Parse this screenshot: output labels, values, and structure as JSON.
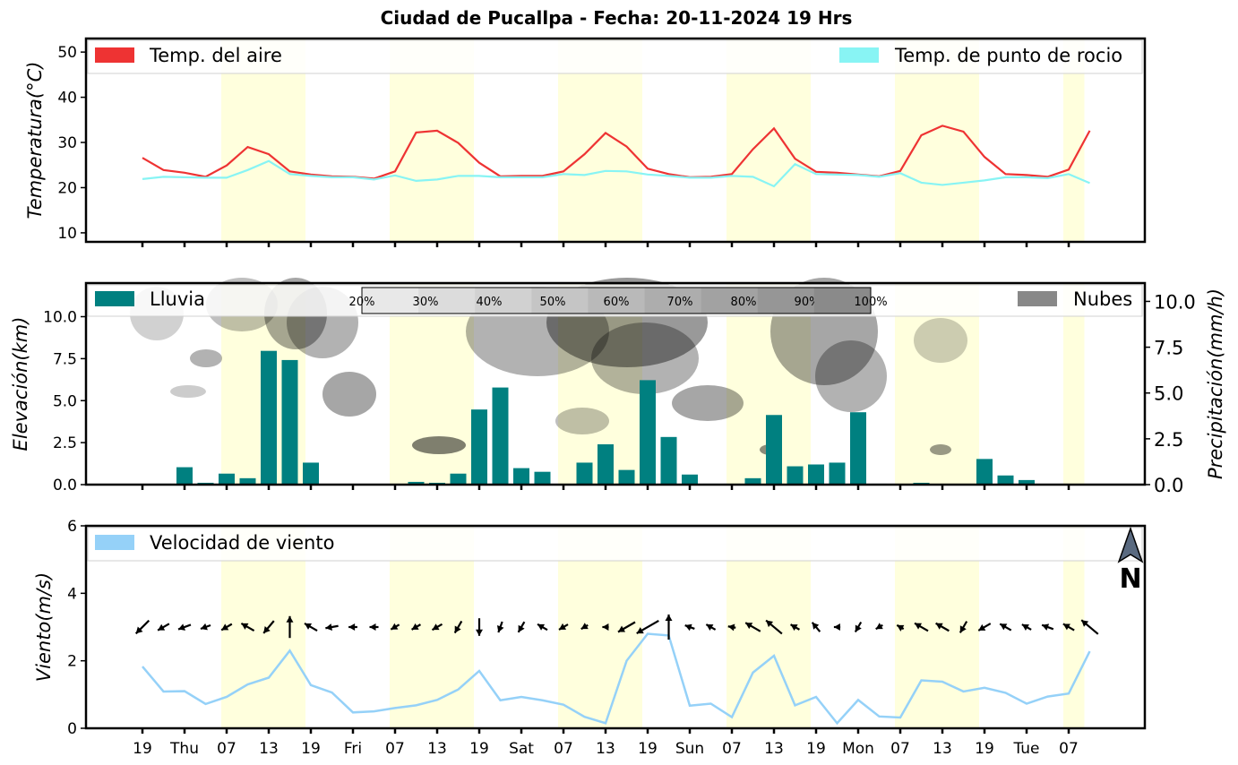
{
  "title": "Ciudad de Pucallpa   -   Fecha: 20-11-2024 19 Hrs",
  "x_tick_labels": [
    "19",
    "Thu",
    "07",
    "13",
    "19",
    "Fri",
    "07",
    "13",
    "19",
    "Sat",
    "07",
    "13",
    "19",
    "Sun",
    "07",
    "13",
    "19",
    "Mon",
    "07",
    "13",
    "19",
    "Tue",
    "07"
  ],
  "daylight_periods": [
    [
      4,
      8
    ],
    [
      12,
      16
    ],
    [
      20,
      24
    ],
    [
      28,
      32
    ],
    [
      36,
      40
    ],
    [
      44,
      45
    ]
  ],
  "colors": {
    "temp": "#ee3333",
    "dew": "#88f4f4",
    "rain": "#008080",
    "clouds": "#888888",
    "wind": "#95d1f8",
    "daylight": "#ffffdd"
  },
  "chart_data": [
    {
      "type": "line",
      "ylabel": "Temperatura(°C)",
      "ylim": [
        8,
        53
      ],
      "yticks": [
        10,
        20,
        30,
        40,
        50
      ],
      "series": [
        {
          "name": "Temp. del aire",
          "values": [
            26.6,
            23.9,
            23.3,
            22.4,
            24.9,
            29.0,
            27.4,
            23.6,
            22.9,
            22.5,
            22.4,
            22.0,
            23.6,
            32.2,
            32.6,
            29.9,
            25.5,
            22.5,
            22.6,
            22.6,
            23.6,
            27.4,
            32.1,
            29.1,
            24.2,
            23.0,
            22.3,
            22.4,
            23.0,
            28.5,
            33.1,
            26.4,
            23.5,
            23.3,
            22.9,
            22.5,
            23.7,
            31.6,
            33.7,
            32.4,
            26.8,
            23.0,
            22.8,
            22.4,
            24.0,
            32.6
          ]
        },
        {
          "name": "Temp. de punto de rocio",
          "values": [
            21.9,
            22.4,
            22.3,
            22.2,
            22.2,
            23.9,
            25.9,
            23.0,
            22.6,
            22.3,
            22.3,
            21.8,
            22.7,
            21.5,
            21.8,
            22.6,
            22.6,
            22.3,
            22.3,
            22.3,
            23.0,
            22.8,
            23.7,
            23.6,
            22.9,
            22.6,
            22.2,
            22.2,
            22.6,
            22.4,
            20.3,
            25.2,
            23.0,
            22.9,
            22.8,
            22.4,
            23.2,
            21.1,
            20.6,
            21.1,
            21.6,
            22.3,
            22.3,
            22.1,
            23.0,
            21.0
          ]
        }
      ]
    },
    {
      "type": "bar",
      "ylabel": "Elevación(km)",
      "y2label": "Precipitación(mm/h)",
      "ylim": [
        0,
        12
      ],
      "yticks": [
        0.0,
        2.5,
        5.0,
        7.5,
        10.0
      ],
      "y2lim": [
        0,
        11
      ],
      "y2ticks": [
        0.0,
        2.5,
        5.0,
        7.5,
        10.0
      ],
      "series": [
        {
          "name": "Lluvia",
          "values": [
            0,
            0.05,
            0.95,
            0.1,
            0.6,
            0.35,
            7.3,
            6.8,
            1.2,
            0,
            0,
            0,
            0,
            0.15,
            0.1,
            0.6,
            4.1,
            5.3,
            0.9,
            0.7,
            0,
            1.2,
            2.2,
            0.8,
            5.7,
            2.6,
            0.55,
            0.05,
            0.05,
            0.35,
            3.8,
            1.0,
            1.1,
            1.2,
            3.95,
            0.05,
            0,
            0.1,
            0,
            0,
            1.4,
            0.5,
            0.25,
            0,
            0
          ]
        },
        {
          "name": "Nubes"
        }
      ],
      "cloud_colorbar": [
        "20%",
        "30%",
        "40%",
        "50%",
        "60%",
        "70%",
        "80%",
        "90%",
        "100%"
      ]
    },
    {
      "type": "line",
      "ylabel": "Viento(m/s)",
      "ylim": [
        0,
        6
      ],
      "yticks": [
        0,
        2,
        4,
        6
      ],
      "series": [
        {
          "name": "Velocidad de viento",
          "values": [
            1.83,
            1.09,
            1.1,
            0.72,
            0.93,
            1.3,
            1.5,
            2.3,
            1.28,
            1.06,
            0.47,
            0.5,
            0.6,
            0.68,
            0.84,
            1.15,
            1.7,
            0.83,
            0.93,
            0.83,
            0.7,
            0.34,
            0.15,
            2.0,
            2.8,
            2.75,
            0.67,
            0.73,
            0.33,
            1.65,
            2.15,
            0.68,
            0.93,
            0.15,
            0.84,
            0.35,
            0.32,
            1.42,
            1.38,
            1.09,
            1.2,
            1.05,
            0.73,
            0.94,
            1.03,
            2.28
          ]
        }
      ],
      "wind_dir_deg": [
        225,
        240,
        250,
        250,
        240,
        300,
        220,
        0,
        300,
        260,
        270,
        270,
        240,
        240,
        240,
        210,
        180,
        200,
        210,
        300,
        240,
        240,
        270,
        240,
        240,
        0,
        290,
        300,
        280,
        300,
        310,
        300,
        320,
        270,
        210,
        240,
        300,
        300,
        300,
        210,
        240,
        300,
        300,
        290,
        300,
        310
      ],
      "north_label": "N"
    }
  ]
}
